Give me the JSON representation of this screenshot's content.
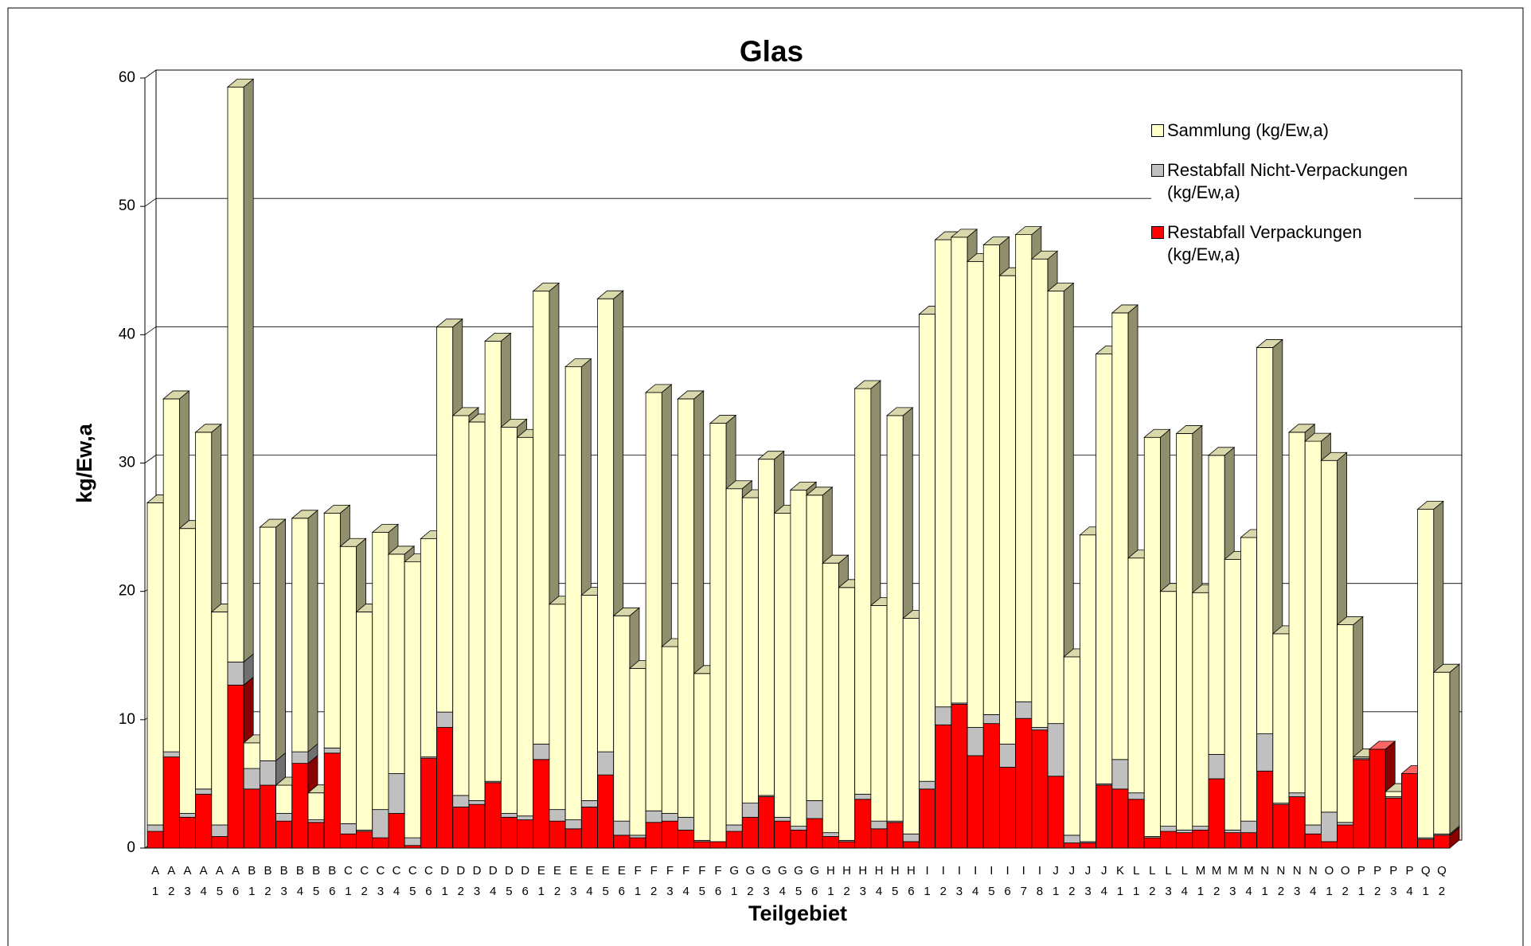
{
  "chart_data": {
    "type": "bar3d_stacked",
    "title": "Glas",
    "x_label": "Teilgebiet",
    "y_label": "kg/Ew,a",
    "categories": [
      "A 1",
      "A 2",
      "A 3",
      "A 4",
      "A 5",
      "A 6",
      "B 1",
      "B 2",
      "B 3",
      "B 4",
      "B 5",
      "B 6",
      "C 1",
      "C 2",
      "C 3",
      "C 4",
      "C 5",
      "C 6",
      "D 1",
      "D 2",
      "D 3",
      "D 4",
      "D 5",
      "D 6",
      "E 1",
      "E 2",
      "E 3",
      "E 4",
      "E 5",
      "E 6",
      "F 1",
      "F 2",
      "F 3",
      "F 4",
      "F 5",
      "F 6",
      "G 1",
      "G 2",
      "G 3",
      "G 4",
      "G 5",
      "G 6",
      "H 1",
      "H 2",
      "H 3",
      "H 4",
      "H 5",
      "H 6",
      "I 1",
      "I 2",
      "I 3",
      "I 4",
      "I 5",
      "I 6",
      "I 7",
      "I 8",
      "J 1",
      "J 2",
      "J 3",
      "J 4",
      "K 1",
      "L 1",
      "L 2",
      "L 3",
      "L 4",
      "M 1",
      "M 2",
      "M 3",
      "M 4",
      "N 1",
      "N 2",
      "N 3",
      "N 4",
      "O 1",
      "O 2",
      "P 1",
      "P 2",
      "P 3",
      "P 4",
      "Q 1",
      "Q 2"
    ],
    "series": [
      {
        "name": "Restabfall Verpackungen (kg/Ew,a)",
        "color": "#ff0000",
        "side_color": "#8b0000",
        "top_color": "#ff6666",
        "values": [
          1.3,
          7.1,
          2.4,
          4.2,
          0.9,
          12.7,
          4.6,
          4.9,
          2.1,
          6.6,
          2.0,
          7.4,
          1.1,
          1.3,
          0.8,
          2.7,
          0.2,
          7.0,
          9.4,
          3.2,
          3.4,
          5.1,
          2.4,
          2.2,
          6.9,
          2.1,
          1.5,
          3.2,
          5.7,
          1.0,
          0.8,
          2.0,
          2.1,
          1.4,
          0.5,
          0.5,
          1.3,
          2.4,
          4.0,
          2.1,
          1.4,
          2.3,
          0.9,
          0.5,
          3.8,
          1.5,
          2.0,
          0.5,
          4.6,
          9.6,
          11.2,
          7.2,
          9.7,
          6.3,
          10.1,
          9.2,
          5.6,
          0.4,
          0.4,
          4.9,
          4.6,
          3.8,
          0.8,
          1.3,
          1.2,
          1.4,
          5.4,
          1.2,
          1.2,
          6.0,
          3.4,
          4.0,
          1.1,
          0.5,
          1.8,
          6.9,
          7.7,
          3.9,
          5.8,
          0.7,
          1.0
        ]
      },
      {
        "name": "Restabfall Nicht-Verpackungen (kg/Ew,a)",
        "color": "#c0c0c0",
        "side_color": "#707070",
        "top_color": "#dcdcdc",
        "values": [
          0.5,
          0.4,
          0.3,
          0.4,
          0.9,
          1.8,
          1.6,
          1.9,
          0.6,
          0.9,
          0.2,
          0.4,
          0.8,
          0.1,
          2.2,
          3.1,
          0.6,
          0.1,
          1.2,
          0.9,
          0.3,
          0.1,
          0.3,
          0.3,
          1.2,
          0.9,
          0.7,
          0.5,
          1.8,
          1.1,
          0.2,
          0.9,
          0.6,
          1.0,
          0.1,
          0,
          0.5,
          1.1,
          0.1,
          0.3,
          0.3,
          1.4,
          0.3,
          0.1,
          0.4,
          0.6,
          0.1,
          0.6,
          0.6,
          1.4,
          0.1,
          2.2,
          0.7,
          1.8,
          1.3,
          0.2,
          4.1,
          0.6,
          0.1,
          0.1,
          2.3,
          0.5,
          0.1,
          0.4,
          0.2,
          0.3,
          1.9,
          0.2,
          0.9,
          2.9,
          0.1,
          0.3,
          0.7,
          2.3,
          0.2,
          0.1,
          0,
          0.1,
          0,
          0.1,
          0.1
        ]
      },
      {
        "name": "Sammlung  (kg/Ew,a)",
        "color": "#ffffcc",
        "side_color": "#8f8f6e",
        "top_color": "#d8d8aa",
        "values": [
          25.1,
          27.5,
          22.2,
          27.8,
          16.6,
          44.8,
          2.0,
          18.2,
          2.2,
          18.2,
          2.1,
          18.3,
          21.6,
          17.0,
          21.6,
          17.1,
          21.5,
          17.0,
          30.0,
          29.6,
          29.5,
          34.3,
          30.1,
          29.5,
          35.3,
          16.0,
          35.3,
          16.0,
          35.3,
          16.0,
          13.0,
          32.6,
          13.0,
          32.6,
          13.0,
          32.6,
          26.2,
          23.8,
          26.2,
          23.7,
          26.2,
          23.8,
          21.0,
          19.7,
          31.6,
          16.8,
          31.6,
          16.8,
          36.4,
          36.4,
          36.3,
          36.3,
          36.6,
          36.5,
          36.4,
          36.5,
          33.7,
          13.9,
          23.9,
          33.5,
          34.8,
          18.3,
          31.1,
          18.3,
          30.9,
          18.2,
          23.3,
          21.1,
          22.1,
          30.1,
          13.2,
          28.1,
          29.9,
          27.4,
          15.4,
          0.1,
          0,
          0.4,
          0,
          25.6,
          12.6
        ]
      }
    ],
    "ylim": [
      0,
      60
    ],
    "yticks": [
      0,
      10,
      20,
      30,
      40,
      50,
      60
    ],
    "grid": true,
    "legend": "upper right"
  }
}
